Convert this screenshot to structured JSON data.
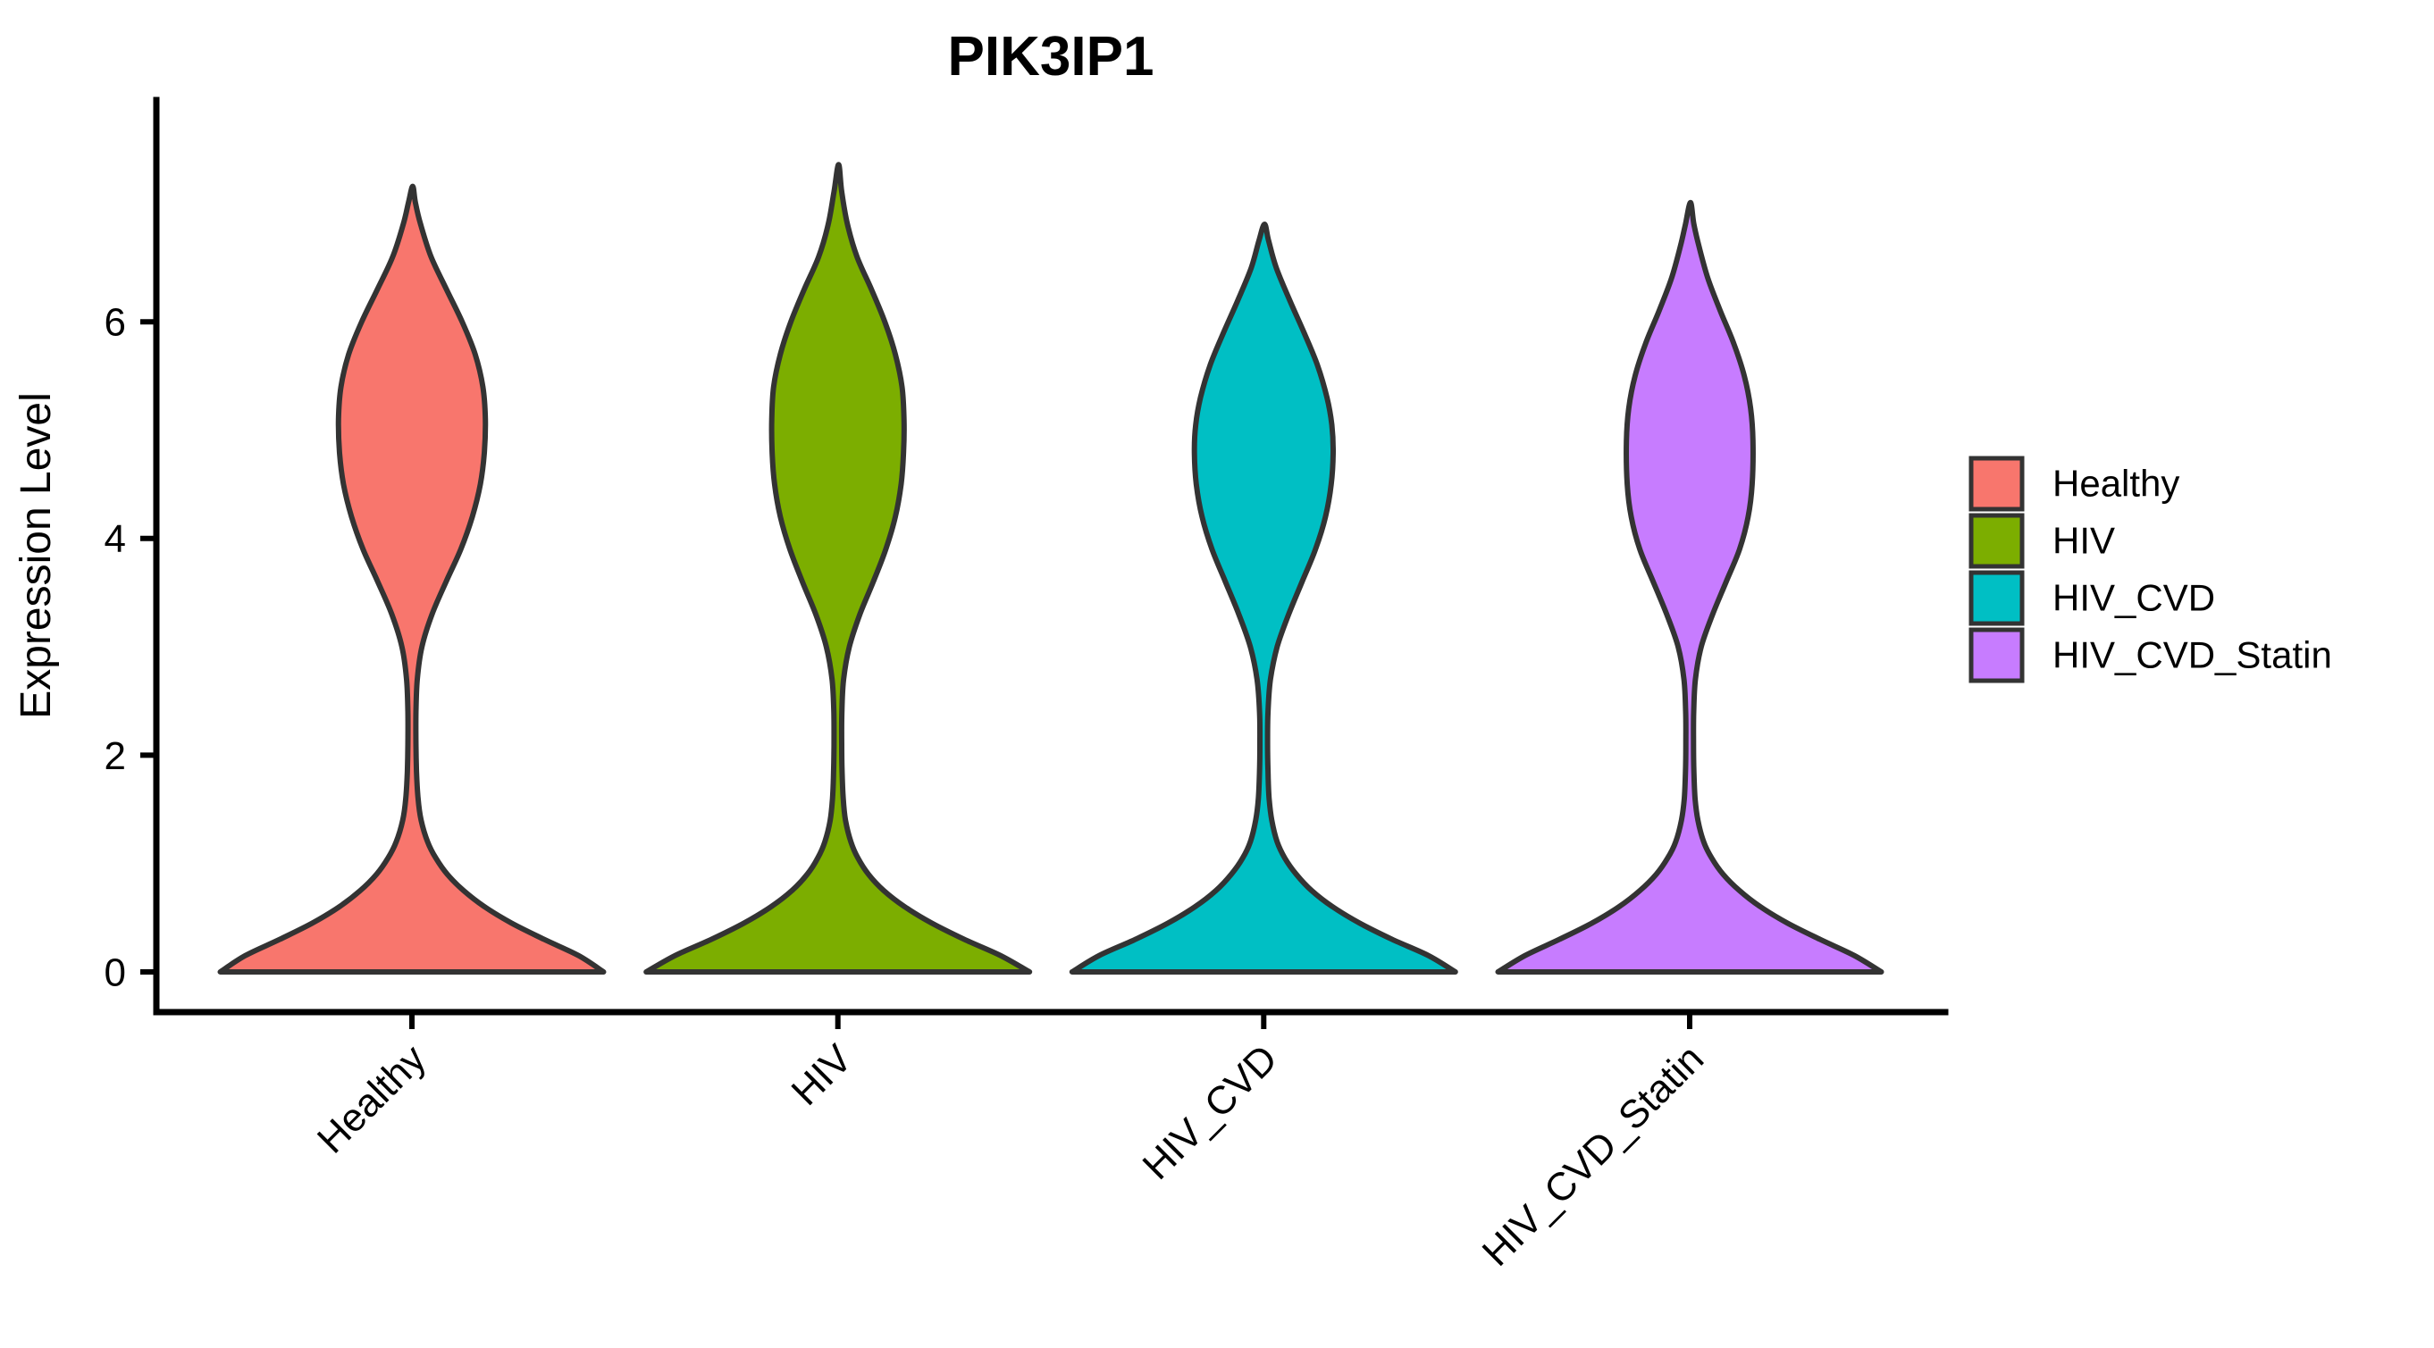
{
  "title": "PIK3IP1",
  "y_axis": {
    "label": "Expression Level",
    "ticks": [
      "0",
      "2",
      "4",
      "6"
    ]
  },
  "chart_data": {
    "type": "violin",
    "title": "PIK3IP1",
    "xlabel": "",
    "ylabel": "Expression Level",
    "categories": [
      "Healthy",
      "HIV",
      "HIV_CVD",
      "HIV_CVD_Statin"
    ],
    "y_ticks": [
      0,
      2,
      4,
      6
    ],
    "ylim": [
      0,
      8
    ],
    "grid": "off",
    "legend_position": "right",
    "x_tick_label_angle": 45,
    "outline_color": "#333333",
    "violin_width": 0.9,
    "series": [
      {
        "name": "Healthy",
        "color": "#F8766D",
        "max_expression": 7.25,
        "upper_peak_value": 5.1,
        "profile": [
          [
            0,
            1.0
          ],
          [
            0.15,
            0.87
          ],
          [
            0.3,
            0.69
          ],
          [
            0.45,
            0.52
          ],
          [
            0.6,
            0.38
          ],
          [
            0.75,
            0.27
          ],
          [
            0.9,
            0.185
          ],
          [
            1.05,
            0.125
          ],
          [
            1.2,
            0.082
          ],
          [
            1.4,
            0.048
          ],
          [
            1.6,
            0.032
          ],
          [
            1.85,
            0.024
          ],
          [
            2.1,
            0.021
          ],
          [
            2.4,
            0.021
          ],
          [
            2.7,
            0.028
          ],
          [
            3.0,
            0.052
          ],
          [
            3.3,
            0.105
          ],
          [
            3.6,
            0.178
          ],
          [
            3.9,
            0.255
          ],
          [
            4.2,
            0.315
          ],
          [
            4.5,
            0.357
          ],
          [
            4.8,
            0.378
          ],
          [
            5.1,
            0.383
          ],
          [
            5.4,
            0.37
          ],
          [
            5.7,
            0.33
          ],
          [
            6.0,
            0.262
          ],
          [
            6.3,
            0.18
          ],
          [
            6.6,
            0.1
          ],
          [
            6.9,
            0.045
          ],
          [
            7.1,
            0.018
          ],
          [
            7.25,
            0.004
          ]
        ]
      },
      {
        "name": "HIV",
        "color": "#7CAE00",
        "max_expression": 7.45,
        "upper_peak_value": 5.1,
        "profile": [
          [
            0,
            1.0
          ],
          [
            0.15,
            0.85
          ],
          [
            0.3,
            0.66
          ],
          [
            0.45,
            0.49
          ],
          [
            0.6,
            0.35
          ],
          [
            0.75,
            0.24
          ],
          [
            0.9,
            0.16
          ],
          [
            1.05,
            0.105
          ],
          [
            1.2,
            0.068
          ],
          [
            1.4,
            0.04
          ],
          [
            1.6,
            0.028
          ],
          [
            1.85,
            0.022
          ],
          [
            2.1,
            0.02
          ],
          [
            2.4,
            0.021
          ],
          [
            2.7,
            0.03
          ],
          [
            3.0,
            0.06
          ],
          [
            3.3,
            0.115
          ],
          [
            3.6,
            0.185
          ],
          [
            3.9,
            0.25
          ],
          [
            4.2,
            0.3
          ],
          [
            4.5,
            0.33
          ],
          [
            4.8,
            0.343
          ],
          [
            5.1,
            0.345
          ],
          [
            5.4,
            0.335
          ],
          [
            5.7,
            0.3
          ],
          [
            6.0,
            0.245
          ],
          [
            6.3,
            0.175
          ],
          [
            6.6,
            0.1
          ],
          [
            6.9,
            0.05
          ],
          [
            7.2,
            0.02
          ],
          [
            7.45,
            0.004
          ]
        ]
      },
      {
        "name": "HIV_CVD",
        "color": "#00BFC4",
        "max_expression": 6.9,
        "upper_peak_value": 4.9,
        "profile": [
          [
            0,
            1.0
          ],
          [
            0.15,
            0.86
          ],
          [
            0.3,
            0.67
          ],
          [
            0.45,
            0.5
          ],
          [
            0.6,
            0.36
          ],
          [
            0.75,
            0.25
          ],
          [
            0.9,
            0.17
          ],
          [
            1.05,
            0.11
          ],
          [
            1.2,
            0.07
          ],
          [
            1.4,
            0.042
          ],
          [
            1.6,
            0.028
          ],
          [
            1.85,
            0.022
          ],
          [
            2.1,
            0.02
          ],
          [
            2.4,
            0.022
          ],
          [
            2.7,
            0.035
          ],
          [
            3.0,
            0.07
          ],
          [
            3.3,
            0.13
          ],
          [
            3.6,
            0.2
          ],
          [
            3.9,
            0.27
          ],
          [
            4.2,
            0.322
          ],
          [
            4.5,
            0.352
          ],
          [
            4.8,
            0.362
          ],
          [
            5.05,
            0.355
          ],
          [
            5.3,
            0.33
          ],
          [
            5.6,
            0.28
          ],
          [
            5.9,
            0.21
          ],
          [
            6.2,
            0.135
          ],
          [
            6.5,
            0.065
          ],
          [
            6.75,
            0.025
          ],
          [
            6.9,
            0.004
          ]
        ]
      },
      {
        "name": "HIV_CVD_Statin",
        "color": "#C77CFF",
        "max_expression": 7.1,
        "upper_peak_value": 4.9,
        "profile": [
          [
            0,
            1.0
          ],
          [
            0.15,
            0.86
          ],
          [
            0.3,
            0.68
          ],
          [
            0.45,
            0.51
          ],
          [
            0.6,
            0.37
          ],
          [
            0.75,
            0.26
          ],
          [
            0.9,
            0.175
          ],
          [
            1.05,
            0.115
          ],
          [
            1.2,
            0.073
          ],
          [
            1.4,
            0.043
          ],
          [
            1.6,
            0.028
          ],
          [
            1.85,
            0.022
          ],
          [
            2.1,
            0.02
          ],
          [
            2.4,
            0.021
          ],
          [
            2.7,
            0.03
          ],
          [
            3.0,
            0.06
          ],
          [
            3.3,
            0.12
          ],
          [
            3.6,
            0.19
          ],
          [
            3.9,
            0.26
          ],
          [
            4.2,
            0.305
          ],
          [
            4.5,
            0.326
          ],
          [
            4.9,
            0.33
          ],
          [
            5.2,
            0.318
          ],
          [
            5.5,
            0.285
          ],
          [
            5.8,
            0.23
          ],
          [
            6.1,
            0.16
          ],
          [
            6.4,
            0.095
          ],
          [
            6.7,
            0.048
          ],
          [
            6.9,
            0.022
          ],
          [
            7.1,
            0.004
          ]
        ]
      }
    ]
  }
}
